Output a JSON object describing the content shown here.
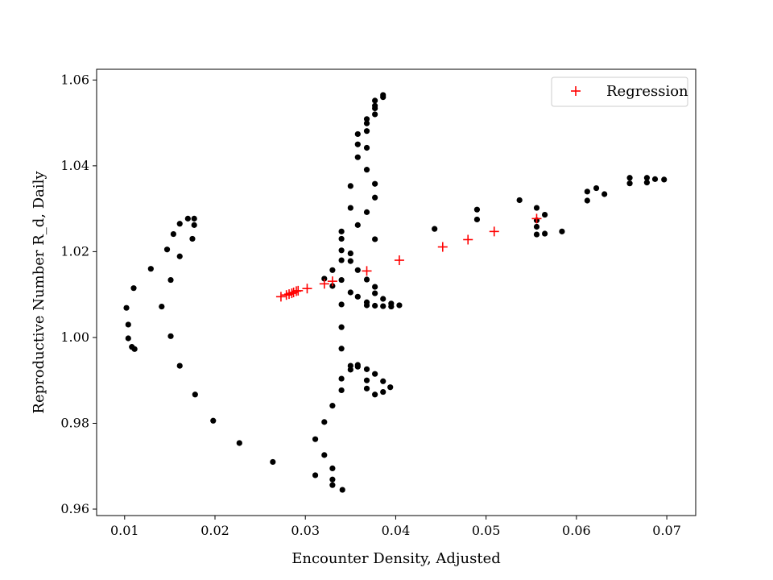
{
  "chart_data": {
    "type": "scatter",
    "title": "",
    "xlabel": "Encounter Density, Adjusted",
    "ylabel": "Reproductive Number R_d, Daily",
    "xlim": [
      0.0069,
      0.0732
    ],
    "ylim": [
      0.9585,
      1.0625
    ],
    "xticks": [
      0.01,
      0.02,
      0.03,
      0.04,
      0.05,
      0.06,
      0.07
    ],
    "xtick_labels": [
      "0.01",
      "0.02",
      "0.03",
      "0.04",
      "0.05",
      "0.06",
      "0.07"
    ],
    "yticks": [
      0.96,
      0.98,
      1.0,
      1.02,
      1.04,
      1.06
    ],
    "ytick_labels": [
      "0.96",
      "0.98",
      "1.00",
      "1.02",
      "1.04",
      "1.06"
    ],
    "grid": false,
    "legend": {
      "position": "top-right",
      "entries": [
        "Regression"
      ]
    },
    "colors": {
      "observed": "#000000",
      "regression": "#ff0000"
    },
    "series": [
      {
        "marker": "circle",
        "color": "#000000",
        "points": [
          [
            0.0177,
            1.0277
          ],
          [
            0.017,
            1.0277
          ],
          [
            0.0177,
            1.0262
          ],
          [
            0.0161,
            1.0265
          ],
          [
            0.0175,
            1.023
          ],
          [
            0.0154,
            1.0241
          ],
          [
            0.0161,
            1.0189
          ],
          [
            0.0147,
            1.0205
          ],
          [
            0.0129,
            1.016
          ],
          [
            0.0151,
            1.0134
          ],
          [
            0.011,
            1.0115
          ],
          [
            0.0141,
            1.0072
          ],
          [
            0.0102,
            1.0069
          ],
          [
            0.0104,
            1.003
          ],
          [
            0.0104,
            0.9998
          ],
          [
            0.0108,
            0.9978
          ],
          [
            0.0111,
            0.9973
          ],
          [
            0.0151,
            1.0003
          ],
          [
            0.0161,
            0.9934
          ],
          [
            0.0178,
            0.9867
          ],
          [
            0.0198,
            0.9806
          ],
          [
            0.0227,
            0.9754
          ],
          [
            0.0264,
            0.971
          ],
          [
            0.0311,
            0.9679
          ],
          [
            0.033,
            0.9656
          ],
          [
            0.0341,
            0.9645
          ],
          [
            0.033,
            0.9669
          ],
          [
            0.033,
            0.9695
          ],
          [
            0.0321,
            0.9726
          ],
          [
            0.0311,
            0.9763
          ],
          [
            0.0321,
            0.9803
          ],
          [
            0.033,
            0.9841
          ],
          [
            0.034,
            0.9877
          ],
          [
            0.034,
            0.9904
          ],
          [
            0.035,
            0.9925
          ],
          [
            0.035,
            0.9934
          ],
          [
            0.0358,
            0.9936
          ],
          [
            0.0358,
            0.9932
          ],
          [
            0.0368,
            0.9926
          ],
          [
            0.0377,
            0.9915
          ],
          [
            0.0386,
            0.9898
          ],
          [
            0.0368,
            0.99
          ],
          [
            0.0368,
            0.9881
          ],
          [
            0.0377,
            0.9867
          ],
          [
            0.0386,
            0.9873
          ],
          [
            0.0394,
            0.9884
          ],
          [
            0.034,
            0.9974
          ],
          [
            0.034,
            1.0024
          ],
          [
            0.034,
            1.0077
          ],
          [
            0.034,
            1.0134
          ],
          [
            0.035,
            1.0105
          ],
          [
            0.0358,
            1.0095
          ],
          [
            0.0368,
            1.0082
          ],
          [
            0.0368,
            1.0075
          ],
          [
            0.0377,
            1.0074
          ],
          [
            0.0386,
            1.009
          ],
          [
            0.0386,
            1.0073
          ],
          [
            0.0395,
            1.0079
          ],
          [
            0.0395,
            1.0072
          ],
          [
            0.0404,
            1.0075
          ],
          [
            0.0321,
            1.0137
          ],
          [
            0.033,
            1.012
          ],
          [
            0.033,
            1.0157
          ],
          [
            0.034,
            1.018
          ],
          [
            0.035,
            1.0178
          ],
          [
            0.035,
            1.0196
          ],
          [
            0.034,
            1.0203
          ],
          [
            0.034,
            1.023
          ],
          [
            0.034,
            1.0247
          ],
          [
            0.0358,
            1.0157
          ],
          [
            0.0368,
            1.0135
          ],
          [
            0.0377,
            1.0118
          ],
          [
            0.0377,
            1.0103
          ],
          [
            0.0358,
            1.0262
          ],
          [
            0.0368,
            1.0292
          ],
          [
            0.035,
            1.0302
          ],
          [
            0.0377,
            1.0229
          ],
          [
            0.0377,
            1.0326
          ],
          [
            0.0377,
            1.0358
          ],
          [
            0.035,
            1.0353
          ],
          [
            0.0368,
            1.0391
          ],
          [
            0.0358,
            1.042
          ],
          [
            0.0358,
            1.045
          ],
          [
            0.0368,
            1.0442
          ],
          [
            0.0358,
            1.0474
          ],
          [
            0.0368,
            1.0481
          ],
          [
            0.0368,
            1.0499
          ],
          [
            0.0368,
            1.0509
          ],
          [
            0.0377,
            1.052
          ],
          [
            0.0377,
            1.0534
          ],
          [
            0.0377,
            1.054
          ],
          [
            0.0377,
            1.0552
          ],
          [
            0.0386,
            1.056
          ],
          [
            0.0386,
            1.0565
          ],
          [
            0.0443,
            1.0253
          ],
          [
            0.049,
            1.0275
          ],
          [
            0.049,
            1.0298
          ],
          [
            0.0537,
            1.032
          ],
          [
            0.0556,
            1.0302
          ],
          [
            0.0565,
            1.0286
          ],
          [
            0.0556,
            1.0273
          ],
          [
            0.0556,
            1.0258
          ],
          [
            0.0556,
            1.024
          ],
          [
            0.0565,
            1.0242
          ],
          [
            0.0584,
            1.0247
          ],
          [
            0.0612,
            1.034
          ],
          [
            0.0612,
            1.0319
          ],
          [
            0.0622,
            1.0348
          ],
          [
            0.0631,
            1.0334
          ],
          [
            0.0659,
            1.0359
          ],
          [
            0.0659,
            1.0372
          ],
          [
            0.0678,
            1.0372
          ],
          [
            0.0678,
            1.0361
          ],
          [
            0.0687,
            1.0369
          ],
          [
            0.0697,
            1.0368
          ]
        ]
      },
      {
        "name": "Regression",
        "marker": "plus",
        "color": "#ff0000",
        "points": [
          [
            0.0273,
            1.0095
          ],
          [
            0.0279,
            1.0099
          ],
          [
            0.0282,
            1.0101
          ],
          [
            0.0285,
            1.0103
          ],
          [
            0.0287,
            1.0105
          ],
          [
            0.029,
            1.0108
          ],
          [
            0.0292,
            1.0109
          ],
          [
            0.0302,
            1.0114
          ],
          [
            0.0321,
            1.0125
          ],
          [
            0.033,
            1.0131
          ],
          [
            0.0368,
            1.0155
          ],
          [
            0.0404,
            1.018
          ],
          [
            0.0452,
            1.0211
          ],
          [
            0.048,
            1.0228
          ],
          [
            0.0509,
            1.0247
          ],
          [
            0.0556,
            1.0277
          ]
        ]
      }
    ]
  }
}
